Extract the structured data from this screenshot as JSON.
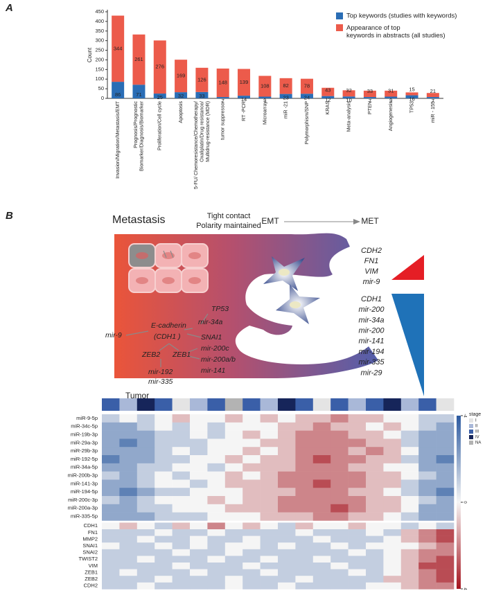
{
  "panel_labels": [
    "A",
    "B"
  ],
  "chart_data": [
    {
      "type": "bar",
      "stacked": true,
      "ylabel": "Count",
      "categories": [
        "Invasion/Migration/Metastasis/EMT",
        "Prognosis/Prognostic\nBiomarker/Diagnosis/Biomarker",
        "Proliferation/Cell cycle",
        "Apoptosis",
        "5-FU/ Chemoresistance/Chemotherapy/\nOxaliplatin/Drug resistance/\nMultidrug-resistance (MDR)",
        "tumor suppressor",
        "RT -PCR",
        "Microarray",
        "miR -21",
        "Polymorphism/SNP",
        "KRAS",
        "Meta-analysis",
        "PTEN",
        "Angiogenesis",
        "TP53",
        "miR - 155"
      ],
      "series": [
        {
          "name": "Top keywords (studies with keywords)",
          "color": "#2a6db5",
          "values": [
            86,
            71,
            25,
            32,
            33,
            7,
            14,
            9,
            23,
            24,
            12,
            10,
            7,
            9,
            16,
            7
          ]
        },
        {
          "name": "Appearance of top\nkeywords in abstracts (all studies)",
          "color": "#ec5b4b",
          "values": [
            344,
            261,
            276,
            169,
            126,
            148,
            139,
            108,
            82,
            78,
            43,
            32,
            33,
            31,
            15,
            21
          ]
        }
      ],
      "ylim": [
        0,
        450
      ],
      "yticks": [
        0,
        50,
        100,
        150,
        200,
        250,
        300,
        350,
        400,
        450
      ],
      "legend": "upper right"
    },
    {
      "type": "heatmap",
      "rows": [
        "miR-9-5p",
        "miR-34c-5p",
        "miR-19b-3p",
        "miR-29a-3p",
        "miR-29b-3p",
        "miR-192-5p",
        "miR-34a-5p",
        "miR-200b-3p",
        "miR-141-3p",
        "miR-194-5p",
        "miR-200c-3p",
        "miR-200a-3p",
        "miR-335-5p",
        "CDH1",
        "FN1",
        "MMP2",
        "SNAI1",
        "SNAI2",
        "TWIST2",
        "VIM",
        "ZEB1",
        "ZEB2",
        "CDH2"
      ],
      "values": [
        [
          -1,
          0,
          -1,
          0,
          1,
          0,
          0,
          1,
          0,
          1,
          0,
          1,
          1,
          2,
          1,
          1,
          0,
          0,
          -1,
          -1
        ],
        [
          -2,
          -2,
          -1,
          0,
          -1,
          0,
          -1,
          0,
          0,
          0,
          1,
          1,
          2,
          1,
          1,
          0,
          1,
          0,
          -1,
          -2
        ],
        [
          -2,
          -2,
          -2,
          -1,
          -1,
          0,
          -1,
          0,
          1,
          0,
          1,
          2,
          2,
          2,
          1,
          1,
          0,
          -1,
          -2,
          -2
        ],
        [
          -2,
          -3,
          -2,
          -1,
          -1,
          -1,
          0,
          0,
          0,
          1,
          1,
          2,
          2,
          2,
          2,
          1,
          1,
          -1,
          -2,
          -2
        ],
        [
          -2,
          -2,
          -2,
          -1,
          0,
          -1,
          0,
          0,
          1,
          0,
          1,
          2,
          2,
          2,
          1,
          2,
          1,
          0,
          -2,
          -2
        ],
        [
          -3,
          -2,
          -2,
          -1,
          -1,
          0,
          0,
          1,
          0,
          1,
          1,
          2,
          3,
          2,
          2,
          1,
          1,
          -1,
          -2,
          -3
        ],
        [
          -2,
          -2,
          -1,
          -1,
          0,
          0,
          -1,
          0,
          1,
          1,
          1,
          2,
          2,
          2,
          1,
          1,
          0,
          0,
          -2,
          -2
        ],
        [
          -1,
          -2,
          -1,
          0,
          -1,
          0,
          0,
          1,
          0,
          1,
          2,
          2,
          2,
          2,
          2,
          1,
          1,
          0,
          -1,
          -2
        ],
        [
          -2,
          -2,
          -1,
          0,
          0,
          -1,
          0,
          1,
          1,
          1,
          2,
          2,
          3,
          2,
          2,
          1,
          1,
          -1,
          -2,
          -2
        ],
        [
          -2,
          -3,
          -2,
          -1,
          -1,
          0,
          0,
          0,
          1,
          1,
          1,
          2,
          2,
          2,
          1,
          1,
          0,
          -1,
          -2,
          -3
        ],
        [
          -1,
          -2,
          -1,
          0,
          0,
          0,
          1,
          0,
          1,
          1,
          2,
          2,
          2,
          2,
          2,
          1,
          1,
          0,
          -1,
          -2
        ],
        [
          -2,
          -2,
          -1,
          -1,
          0,
          0,
          0,
          1,
          1,
          1,
          2,
          2,
          2,
          3,
          2,
          1,
          1,
          0,
          -2,
          -2
        ],
        [
          -2,
          -2,
          -2,
          -1,
          -1,
          -1,
          0,
          0,
          0,
          1,
          1,
          1,
          2,
          2,
          1,
          1,
          0,
          -1,
          -2,
          -2
        ],
        [
          0,
          1,
          0,
          -1,
          1,
          0,
          2,
          0,
          1,
          0,
          -1,
          1,
          0,
          0,
          1,
          0,
          0,
          -1,
          0,
          -1
        ],
        [
          -1,
          -1,
          -1,
          0,
          -1,
          -1,
          0,
          -1,
          -1,
          -1,
          -1,
          0,
          -1,
          -1,
          -1,
          0,
          -1,
          1,
          2,
          3
        ],
        [
          -1,
          -1,
          0,
          -1,
          -1,
          0,
          -1,
          -1,
          0,
          -1,
          -1,
          -1,
          0,
          -1,
          -1,
          -1,
          0,
          1,
          2,
          3
        ],
        [
          0,
          -1,
          -1,
          0,
          -1,
          0,
          -1,
          0,
          0,
          -1,
          0,
          -1,
          -1,
          0,
          -1,
          0,
          0,
          0,
          1,
          2
        ],
        [
          -1,
          -1,
          -1,
          -1,
          0,
          -1,
          -1,
          0,
          -1,
          -1,
          -1,
          -1,
          -1,
          -1,
          0,
          -1,
          0,
          1,
          2,
          2
        ],
        [
          -1,
          -1,
          0,
          -1,
          -1,
          -1,
          0,
          -1,
          -1,
          0,
          -1,
          -1,
          0,
          -1,
          -1,
          -1,
          0,
          1,
          2,
          3
        ],
        [
          -1,
          -1,
          -1,
          -1,
          0,
          -1,
          -1,
          -1,
          0,
          -1,
          -1,
          -1,
          -1,
          0,
          -1,
          -1,
          0,
          1,
          3,
          3
        ],
        [
          -1,
          0,
          -1,
          -1,
          -1,
          0,
          -1,
          -1,
          -1,
          0,
          -1,
          -1,
          -1,
          -1,
          0,
          -1,
          0,
          1,
          2,
          3
        ],
        [
          -1,
          -1,
          -1,
          0,
          -1,
          -1,
          -1,
          0,
          -1,
          -1,
          -1,
          0,
          -1,
          -1,
          -1,
          -1,
          1,
          1,
          2,
          3
        ],
        [
          -1,
          -1,
          0,
          -1,
          -1,
          -1,
          -1,
          0,
          -1,
          -1,
          0,
          -1,
          -1,
          -1,
          -1,
          0,
          0,
          1,
          2,
          2
        ]
      ],
      "colorbar": {
        "lim": [
          -4,
          4
        ],
        "ticks": [
          -4,
          0,
          4
        ]
      },
      "stage": {
        "title": "stage",
        "levels": [
          {
            "name": "I",
            "color": "#e4e4e4"
          },
          {
            "name": "II",
            "color": "#a9b8d8"
          },
          {
            "name": "III",
            "color": "#3a5fa8"
          },
          {
            "name": "IV",
            "color": "#16255a"
          },
          {
            "name": "NA",
            "color": "#b3b3b3"
          }
        ],
        "values": [
          "III",
          "II",
          "IV",
          "III",
          "I",
          "II",
          "III",
          "NA",
          "III",
          "II",
          "IV",
          "III",
          "I",
          "III",
          "II",
          "III",
          "IV",
          "II",
          "III",
          "I"
        ]
      }
    }
  ],
  "diagram": {
    "title": "Metastasis",
    "contact": [
      "Tight contact",
      "Polarity maintained"
    ],
    "transition": [
      "EMT",
      "MET"
    ],
    "up_markers": [
      "CDH2",
      "FN1",
      "VIM",
      "mir-9"
    ],
    "down_markers": [
      "CDH1",
      "mir-200",
      "mir-34a",
      "mir-200",
      "mir-141",
      "mir-194",
      "mir-335",
      "mir-29"
    ],
    "network": [
      "TP53",
      "mir-34a",
      "E-cadherin",
      "(CDH1 )",
      "mir-9",
      "SNAI1",
      "ZEB2",
      "ZEB1",
      "mir-200c",
      "mir-200a/b",
      "mir-141",
      "mir-192",
      "mir-335"
    ],
    "tumor": "Tumor"
  }
}
